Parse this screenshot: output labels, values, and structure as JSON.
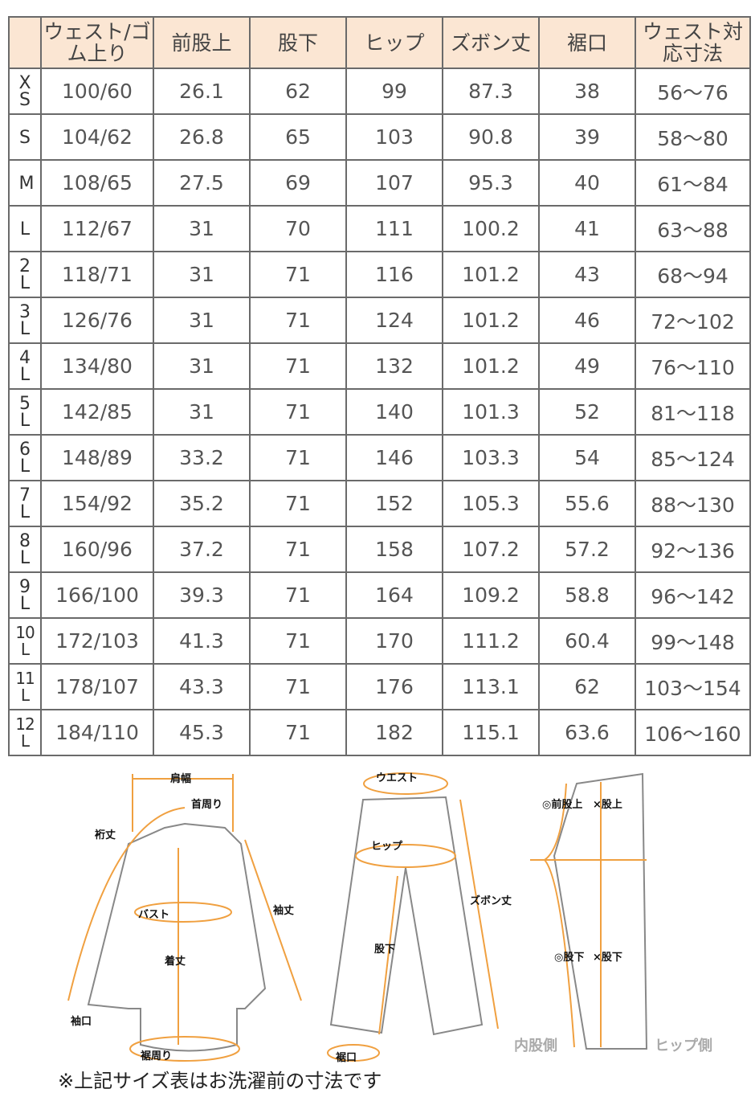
{
  "headers": [
    "",
    "ウェスト/ゴム上り",
    "前股上",
    "股下",
    "ヒップ",
    "ズボン丈",
    "裾口",
    "ウェスト対応寸法"
  ],
  "rows": [
    [
      "XS",
      "100/60",
      "26.1",
      "62",
      "99",
      "87.3",
      "38",
      "56～76"
    ],
    [
      "S",
      "104/62",
      "26.8",
      "65",
      "103",
      "90.8",
      "39",
      "58～80"
    ],
    [
      "M",
      "108/65",
      "27.5",
      "69",
      "107",
      "95.3",
      "40",
      "61～84"
    ],
    [
      "L",
      "112/67",
      "31",
      "70",
      "111",
      "100.2",
      "41",
      "63～88"
    ],
    [
      "2L",
      "118/71",
      "31",
      "71",
      "116",
      "101.2",
      "43",
      "68～94"
    ],
    [
      "3L",
      "126/76",
      "31",
      "71",
      "124",
      "101.2",
      "46",
      "72～102"
    ],
    [
      "4L",
      "134/80",
      "31",
      "71",
      "132",
      "101.2",
      "49",
      "76～110"
    ],
    [
      "5L",
      "142/85",
      "31",
      "71",
      "140",
      "101.3",
      "52",
      "81～118"
    ],
    [
      "6L",
      "148/89",
      "33.2",
      "71",
      "146",
      "103.3",
      "54",
      "85～124"
    ],
    [
      "7L",
      "154/92",
      "35.2",
      "71",
      "152",
      "105.3",
      "55.6",
      "88～130"
    ],
    [
      "8L",
      "160/96",
      "37.2",
      "71",
      "158",
      "107.2",
      "57.2",
      "92～136"
    ],
    [
      "9L",
      "166/100",
      "39.3",
      "71",
      "164",
      "109.2",
      "58.8",
      "96～142"
    ],
    [
      "10L",
      "172/103",
      "41.3",
      "71",
      "170",
      "111.2",
      "60.4",
      "99～148"
    ],
    [
      "11L",
      "178/107",
      "43.3",
      "71",
      "176",
      "113.1",
      "62",
      "103～154"
    ],
    [
      "12L",
      "184/110",
      "45.3",
      "71",
      "182",
      "115.1",
      "63.6",
      "106～160"
    ]
  ],
  "diagram": {
    "shirt": {
      "shoulder": "肩幅",
      "neck": "首周り",
      "yuki": "裄丈",
      "bust": "バスト",
      "sleeve": "袖丈",
      "length": "着丈",
      "cuff": "袖口",
      "hem": "裾周り"
    },
    "pants": {
      "waist": "ウエスト",
      "hip": "ヒップ",
      "inseam": "股下",
      "length": "ズボン丈",
      "hem": "裾口"
    },
    "side": {
      "front_rise": "◎前股上",
      "rise": "×股上",
      "inseam_o": "◎股下",
      "inseam_x": "×股下",
      "inner": "内股側",
      "hip": "ヒップ側"
    }
  },
  "accent_color": "#f0a040",
  "note": "※上記サイズ表はお洗濯前の寸法です"
}
